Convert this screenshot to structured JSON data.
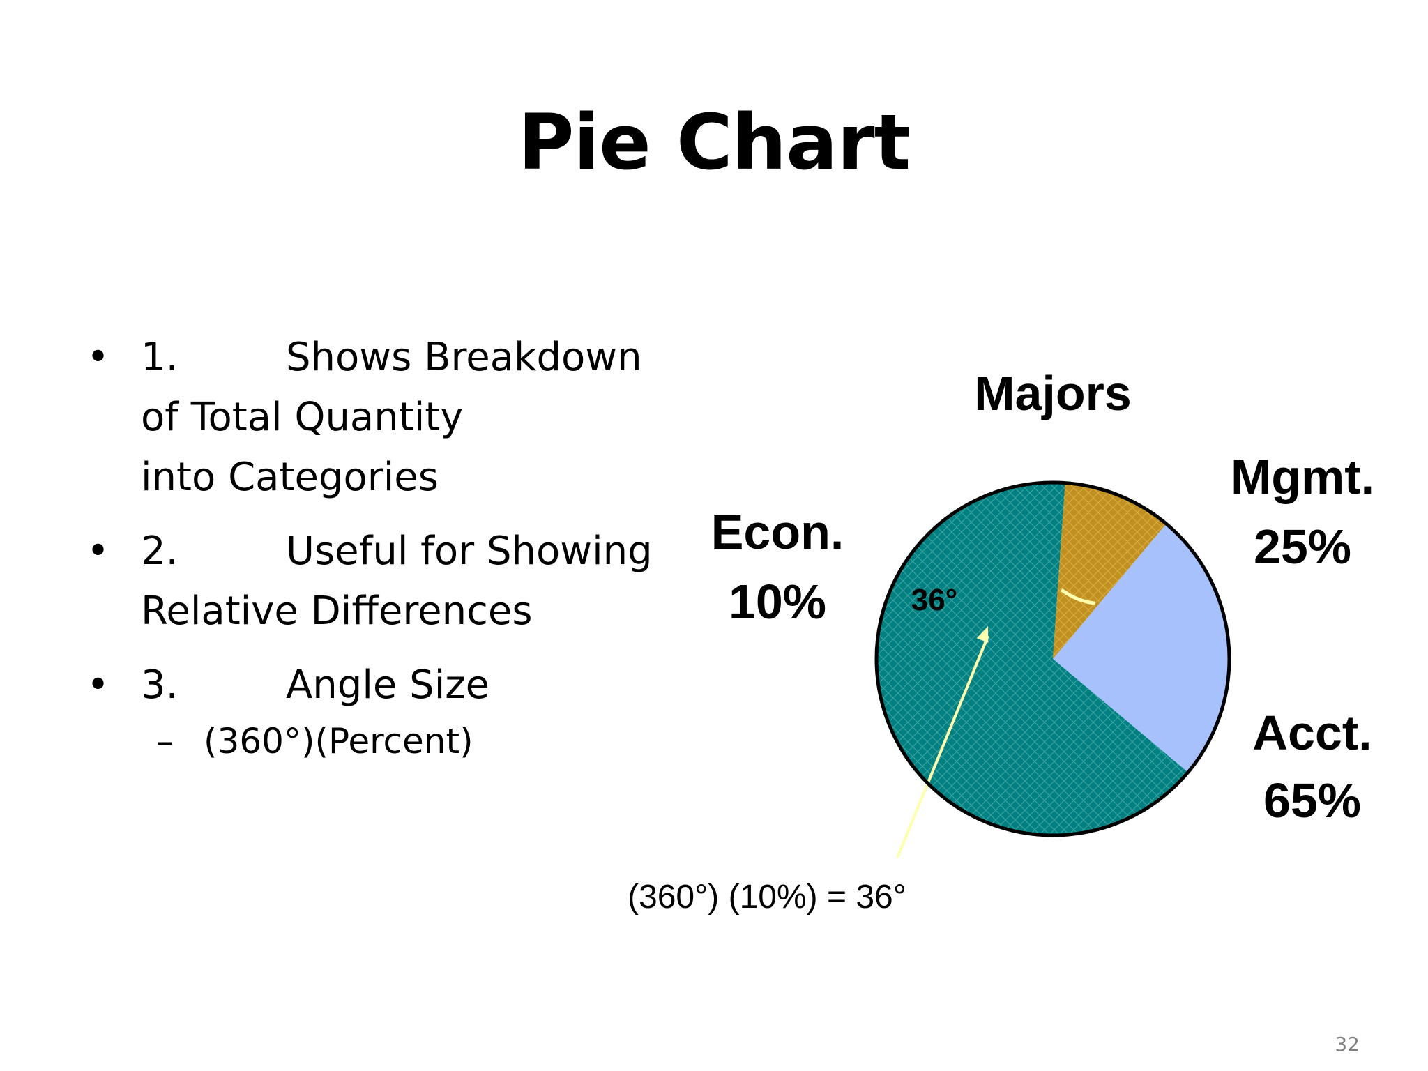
{
  "slide": {
    "title": "Pie Chart",
    "page_number": "32"
  },
  "bullets": [
    {
      "bullet": "•",
      "number": "1.",
      "lines": [
        "Shows Breakdown",
        "of Total Quantity",
        "into Categories"
      ]
    },
    {
      "bullet": "•",
      "number": "2.",
      "lines": [
        "Useful for Showing",
        "Relative Differences"
      ]
    },
    {
      "bullet": "•",
      "number": "3.",
      "lines": [
        "Angle Size"
      ]
    }
  ],
  "sub_bullet": {
    "dash": "–",
    "text": "(360°)(Percent)"
  },
  "chart_data": {
    "type": "pie",
    "title": "Majors",
    "slices": [
      {
        "name": "Mgmt.",
        "value": 25,
        "value_label": "25%",
        "color": "#a6c1fb"
      },
      {
        "name": "Acct.",
        "value": 65,
        "value_label": "65%",
        "color": "#008080"
      },
      {
        "name": "Econ.",
        "value": 10,
        "value_label": "10%",
        "color": "#c09020"
      }
    ],
    "angle_annotation": "36°",
    "formula_annotation": "(360°) (10%) = 36°",
    "arrow_color": "#ffffb0"
  }
}
